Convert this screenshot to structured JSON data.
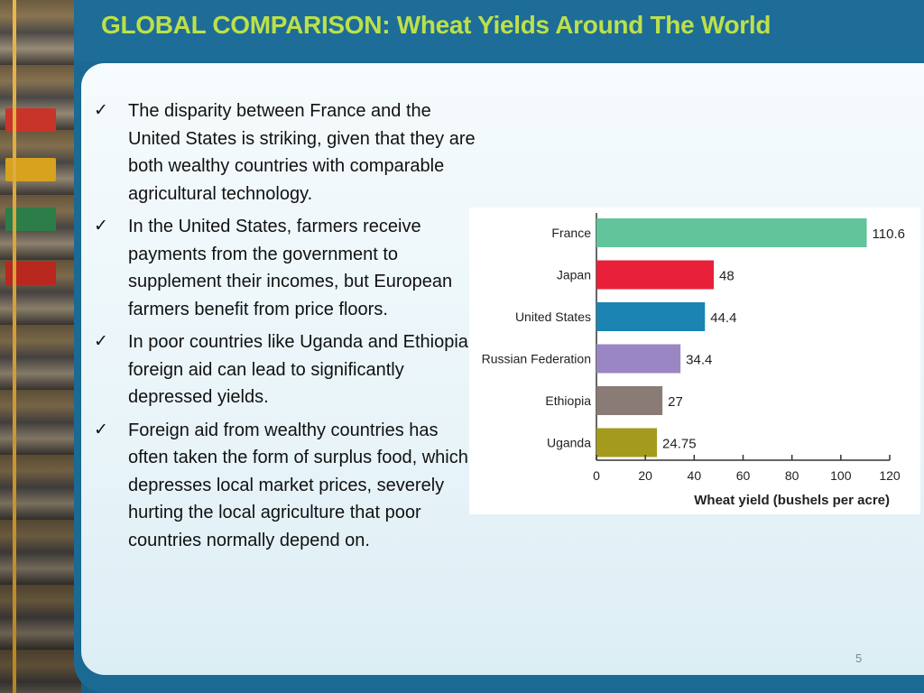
{
  "title": "GLOBAL COMPARISON: Wheat Yields Around The World",
  "bullets": [
    "The disparity between France and the United States is striking, given that they are both wealthy countries with comparable agricultural technology.",
    "In the United States, farmers receive payments from the government to supplement their incomes, but European farmers benefit from price floors.",
    "In poor countries like Uganda and Ethiopia, foreign aid can lead to significantly depressed yields.",
    "Foreign aid from wealthy countries has often taken the form of surplus food, which depresses local market prices, severely hurting the local agriculture that poor countries normally depend on."
  ],
  "check_glyph": "✓",
  "page_number": "5",
  "colors": {
    "title": "#bde04a",
    "panel": "#1b6a94"
  },
  "chart_data": {
    "type": "bar",
    "orientation": "horizontal",
    "categories": [
      "France",
      "Japan",
      "United States",
      "Russian Federation",
      "Ethiopia",
      "Uganda"
    ],
    "values": [
      110.6,
      48,
      44.4,
      34.4,
      27,
      24.75
    ],
    "value_labels": [
      "110.6",
      "48",
      "44.4",
      "34.4",
      "27",
      "24.75"
    ],
    "bar_colors": [
      "#62c49a",
      "#e8203a",
      "#1b84b3",
      "#9b86c4",
      "#8a7b76",
      "#a49a1d"
    ],
    "xlabel": "Wheat yield (bushels per acre)",
    "ylabel": "",
    "xlim": [
      0,
      120
    ],
    "xticks": [
      0,
      20,
      40,
      60,
      80,
      100,
      120
    ],
    "grid": false
  }
}
